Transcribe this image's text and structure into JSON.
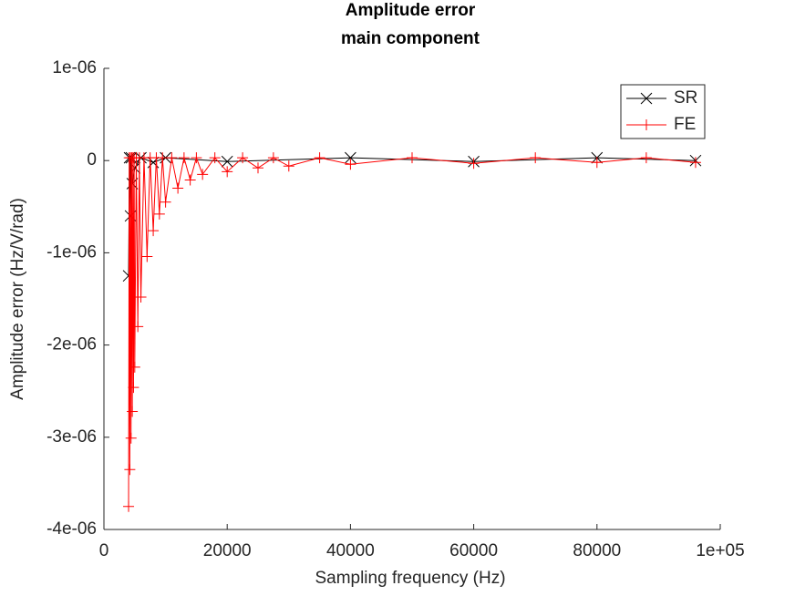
{
  "chart_data": {
    "type": "line",
    "title": [
      "Amplitude error",
      "main component"
    ],
    "x_label": "Sampling frequency (Hz)",
    "y_label": "Amplitude error (Hz/V/rad)",
    "xlim": [
      0,
      100000
    ],
    "xticks": [
      0,
      20000,
      40000,
      60000,
      80000,
      {
        "value": 100000,
        "label": "1e+05"
      }
    ],
    "ylim": [
      -4e-06,
      1e-06
    ],
    "yticks": [
      {
        "value": -4e-06,
        "label": "-4e-06"
      },
      {
        "value": -3e-06,
        "label": "-3e-06"
      },
      {
        "value": -2e-06,
        "label": "-2e-06"
      },
      {
        "value": -1e-06,
        "label": "-1e-06"
      },
      0,
      {
        "value": 1e-06,
        "label": "1e-06"
      }
    ],
    "legend": "upper right",
    "series": [
      {
        "name": "SR",
        "color": "#000000",
        "marker": "x",
        "x": [
          4000,
          4150,
          4300,
          4450,
          4600,
          5000,
          6000,
          8000,
          10000,
          20000,
          40000,
          60000,
          80000,
          96000
        ],
        "values": [
          -1.25e-06,
          3e-08,
          -6e-07,
          3e-08,
          -2.5e-07,
          -8e-08,
          3e-08,
          -2e-08,
          3e-08,
          -1e-08,
          3e-08,
          -1e-08,
          3e-08,
          0
        ]
      },
      {
        "name": "FE",
        "color": "#ff0000",
        "marker": "+",
        "x": [
          4000,
          4100,
          4200,
          4300,
          4400,
          4500,
          4600,
          4700,
          4800,
          4900,
          5000,
          5250,
          5500,
          5750,
          6000,
          6500,
          7000,
          7500,
          8000,
          8500,
          9000,
          9500,
          10000,
          11000,
          12000,
          13000,
          14000,
          15000,
          16000,
          18000,
          20000,
          22500,
          25000,
          27500,
          30000,
          35000,
          40000,
          50000,
          60000,
          70000,
          80000,
          88000,
          96000
        ],
        "values": [
          -3.75e-06,
          3e-08,
          -3.35e-06,
          3e-08,
          -3.01e-06,
          3e-08,
          -2.72e-06,
          3e-08,
          -2.46e-06,
          3e-08,
          -2.24e-06,
          3e-08,
          -1.8e-06,
          3e-08,
          -1.48e-06,
          3e-08,
          -1.04e-06,
          3e-08,
          -7.6e-07,
          3e-08,
          -5.8e-07,
          3e-08,
          -4.5e-07,
          3e-08,
          -3e-07,
          3e-08,
          -2.1e-07,
          3e-08,
          -1.5e-07,
          3e-08,
          -1.2e-07,
          3e-08,
          -8e-08,
          3e-08,
          -6e-08,
          3e-08,
          -4e-08,
          3e-08,
          -3e-08,
          3e-08,
          -2e-08,
          3e-08,
          -2e-08
        ]
      }
    ]
  }
}
